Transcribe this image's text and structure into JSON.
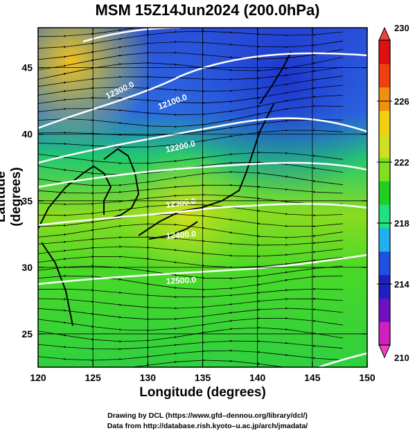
{
  "title": "MSM 15Z14Jun2024 (200.0hPa)",
  "xlabel": "Longitude (degrees)",
  "ylabel": "Latitude  (degrees)",
  "x_ticks": [
    "120",
    "125",
    "130",
    "135",
    "140",
    "145",
    "150"
  ],
  "y_ticks": [
    "25",
    "30",
    "35",
    "40",
    "45"
  ],
  "colorbar": {
    "min": 210,
    "max": 230,
    "ticks": [
      "230",
      "226",
      "222",
      "218",
      "214",
      "210"
    ],
    "colors": [
      "#d020c0",
      "#7010c0",
      "#2020c0",
      "#2050e0",
      "#20b0f0",
      "#20e080",
      "#20d020",
      "#80e020",
      "#d0e020",
      "#f0d010",
      "#f09010",
      "#f04010",
      "#e01010"
    ]
  },
  "contour_labels": [
    "12300.0",
    "12100.0",
    "12200.0",
    "12300.0",
    "12400.0",
    "12500.0"
  ],
  "credits": {
    "line1": "Drawing by DCL (https://www.gfd–dennou.org/library/dcl/)",
    "line2": "Data from http://database.rish.kyoto–u.ac.jp/arch/jmadata/"
  },
  "extent": {
    "lon": [
      120,
      150
    ],
    "lat": [
      22.5,
      48
    ]
  }
}
